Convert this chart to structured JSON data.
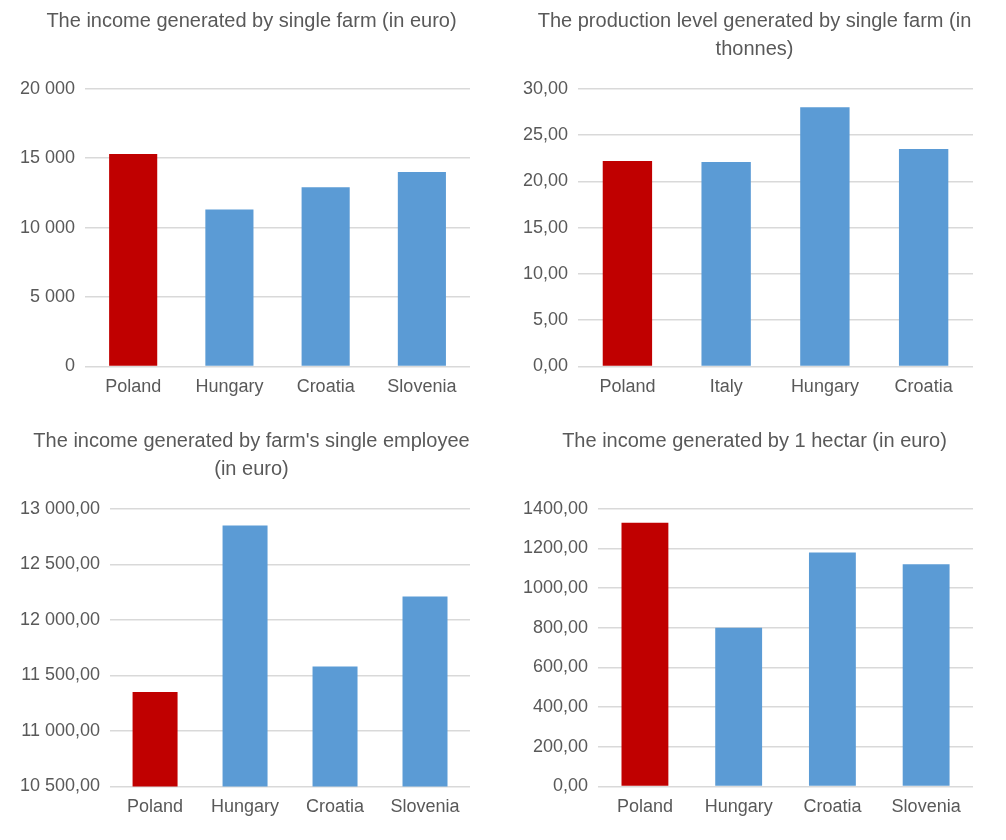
{
  "chart_data": [
    {
      "type": "bar",
      "title": "The income generated by single farm (in euro)",
      "categories": [
        "Poland",
        "Hungary",
        "Croatia",
        "Slovenia"
      ],
      "values": [
        15300,
        11300,
        12900,
        14000
      ],
      "colors": [
        "#c00000",
        "#5b9bd5",
        "#5b9bd5",
        "#5b9bd5"
      ],
      "ylim": [
        0,
        20000
      ],
      "yticks": [
        {
          "value": 0,
          "label": "0"
        },
        {
          "value": 5000,
          "label": "5 000"
        },
        {
          "value": 10000,
          "label": "10 000"
        },
        {
          "value": 15000,
          "label": "15 000"
        },
        {
          "value": 20000,
          "label": "20 000"
        }
      ],
      "grid": "y",
      "legend": false
    },
    {
      "type": "bar",
      "title": "The production level generated by single farm (in thonnes)",
      "categories": [
        "Poland",
        "Italy",
        "Hungary",
        "Croatia"
      ],
      "values": [
        22.2,
        22.1,
        28.0,
        23.5
      ],
      "colors": [
        "#c00000",
        "#5b9bd5",
        "#5b9bd5",
        "#5b9bd5"
      ],
      "ylim": [
        0,
        30
      ],
      "yticks": [
        {
          "value": 0,
          "label": "0,00"
        },
        {
          "value": 5,
          "label": "5,00"
        },
        {
          "value": 10,
          "label": "10,00"
        },
        {
          "value": 15,
          "label": "15,00"
        },
        {
          "value": 20,
          "label": "20,00"
        },
        {
          "value": 25,
          "label": "25,00"
        },
        {
          "value": 30,
          "label": "30,00"
        }
      ],
      "grid": "y",
      "legend": false
    },
    {
      "type": "bar",
      "title": "The income generated by farm's single employee (in euro)",
      "categories": [
        "Poland",
        "Hungary",
        "Croatia",
        "Slovenia"
      ],
      "values": [
        11350,
        12850,
        11580,
        12210
      ],
      "colors": [
        "#c00000",
        "#5b9bd5",
        "#5b9bd5",
        "#5b9bd5"
      ],
      "ylim": [
        10500,
        13000
      ],
      "yticks": [
        {
          "value": 10500,
          "label": "10 500,00"
        },
        {
          "value": 11000,
          "label": "11 000,00"
        },
        {
          "value": 11500,
          "label": "11 500,00"
        },
        {
          "value": 12000,
          "label": "12 000,00"
        },
        {
          "value": 12500,
          "label": "12 500,00"
        },
        {
          "value": 13000,
          "label": "13 000,00"
        }
      ],
      "grid": "y",
      "legend": false
    },
    {
      "type": "bar",
      "title": "The income generated by 1 hectar (in euro)",
      "categories": [
        "Poland",
        "Hungary",
        "Croatia",
        "Slovenia"
      ],
      "values": [
        1330,
        800,
        1180,
        1120
      ],
      "colors": [
        "#c00000",
        "#5b9bd5",
        "#5b9bd5",
        "#5b9bd5"
      ],
      "ylim": [
        0,
        1400
      ],
      "yticks": [
        {
          "value": 0,
          "label": "0,00"
        },
        {
          "value": 200,
          "label": "200,00"
        },
        {
          "value": 400,
          "label": "400,00"
        },
        {
          "value": 600,
          "label": "600,00"
        },
        {
          "value": 800,
          "label": "800,00"
        },
        {
          "value": 1000,
          "label": "1000,00"
        },
        {
          "value": 1200,
          "label": "1200,00"
        },
        {
          "value": 1400,
          "label": "1400,00"
        }
      ],
      "grid": "y",
      "legend": false
    }
  ]
}
